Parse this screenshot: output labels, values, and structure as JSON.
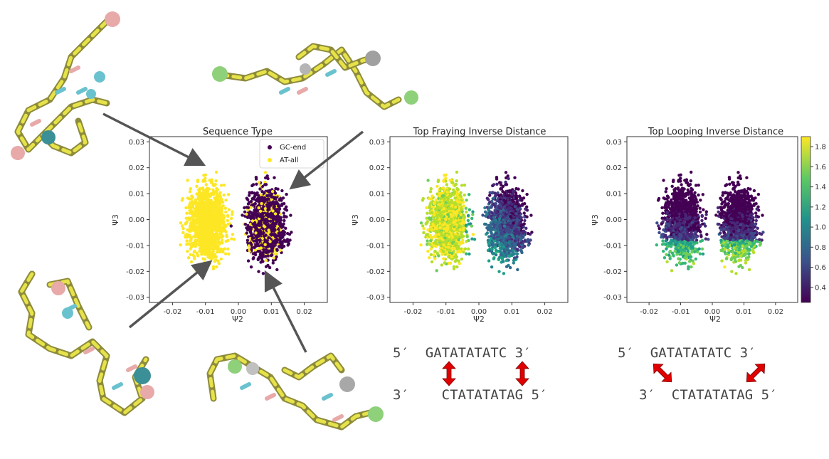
{
  "chart_data": [
    {
      "type": "scatter",
      "title": "Sequence Type",
      "xlabel": "Ψ2",
      "ylabel": "Ψ3",
      "xlim": [
        -0.027,
        0.027
      ],
      "ylim": [
        -0.032,
        0.032
      ],
      "xticks": [
        "-0.02",
        "-0.01",
        "0.00",
        "0.01",
        "0.02"
      ],
      "yticks": [
        "0.03",
        "0.02",
        "0.01",
        "0.00",
        "-0.01",
        "-0.02",
        "-0.03"
      ],
      "legend_position": "top-right",
      "series": [
        {
          "name": "GC-end",
          "color": "#440154"
        },
        {
          "name": "AT-all",
          "color": "#fde725"
        }
      ]
    },
    {
      "type": "scatter",
      "title": "Top Fraying Inverse Distance",
      "xlabel": "Ψ2",
      "ylabel": "Ψ3",
      "xlim": [
        -0.027,
        0.027
      ],
      "ylim": [
        -0.032,
        0.032
      ],
      "xticks": [
        "-0.02",
        "-0.01",
        "0.00",
        "0.01",
        "0.02"
      ],
      "yticks": [
        "0.03",
        "0.02",
        "0.01",
        "0.00",
        "-0.01",
        "-0.02",
        "-0.03"
      ],
      "colormap": "viridis"
    },
    {
      "type": "scatter",
      "title": "Top Looping Inverse Distance",
      "xlabel": "Ψ2",
      "ylabel": "Ψ3",
      "xlim": [
        -0.027,
        0.027
      ],
      "ylim": [
        -0.032,
        0.032
      ],
      "xticks": [
        "-0.02",
        "-0.01",
        "0.00",
        "0.01",
        "0.02"
      ],
      "yticks": [
        "0.03",
        "0.02",
        "0.01",
        "0.00",
        "-0.01",
        "-0.02",
        "-0.03"
      ],
      "colormap": "viridis",
      "colorbar": {
        "min": 0.25,
        "max": 1.9,
        "ticks": [
          "1.8",
          "1.6",
          "1.4",
          "1.2",
          "1.0",
          "0.8",
          "0.6",
          "0.4"
        ]
      }
    }
  ],
  "sequences": {
    "fraying": {
      "top": "5′  GATATATATC 3′",
      "bottom": "3′    CTATATATAG 5′"
    },
    "looping": {
      "top": "5′  GATATATATC 3′",
      "bottom": "3′  CTATATATAG 5′"
    }
  },
  "colors": {
    "arrow": "#d40000",
    "pointer": "#555555",
    "frame": "#333333"
  }
}
